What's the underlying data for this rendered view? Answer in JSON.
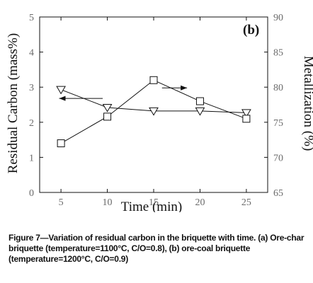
{
  "caption": "Figure 7—Variation of residual carbon in the briquette with time. (a) Ore-char briquette (temperature=1100°C, C/O=0.8), (b) ore-coal briquette (temperature=1200°C, C/O=0.9)",
  "chart_data": {
    "type": "line",
    "panel_label": "(b)",
    "xlabel": "Time (min)",
    "ylabel_left": "Residual Carbon (mass%)",
    "ylabel_right": "Metallization (%)",
    "x_ticks": [
      5,
      10,
      15,
      20,
      25
    ],
    "y_left_ticks": [
      0,
      1,
      2,
      3,
      4,
      5
    ],
    "y_right_ticks": [
      65,
      70,
      75,
      80,
      85,
      90
    ],
    "xlim": [
      2.7,
      27.3
    ],
    "ylim_left": [
      0,
      5
    ],
    "ylim_right": [
      65,
      90
    ],
    "grid": false,
    "series": [
      {
        "axis": "left",
        "marker": "triangle-down",
        "x": [
          5,
          10,
          15,
          20,
          25
        ],
        "y": [
          2.93,
          2.42,
          2.32,
          2.32,
          2.27
        ]
      },
      {
        "axis": "right",
        "marker": "square",
        "x": [
          5,
          10,
          15,
          20,
          25
        ],
        "y": [
          72.0,
          75.8,
          81.0,
          78.0,
          75.5
        ]
      }
    ],
    "arrows": [
      {
        "direction": "left",
        "x_from": 9.5,
        "x_to": 4.8,
        "y_left": 2.68
      },
      {
        "direction": "right",
        "x_from": 15.9,
        "x_to": 18.6,
        "y_left": 2.98
      }
    ]
  }
}
